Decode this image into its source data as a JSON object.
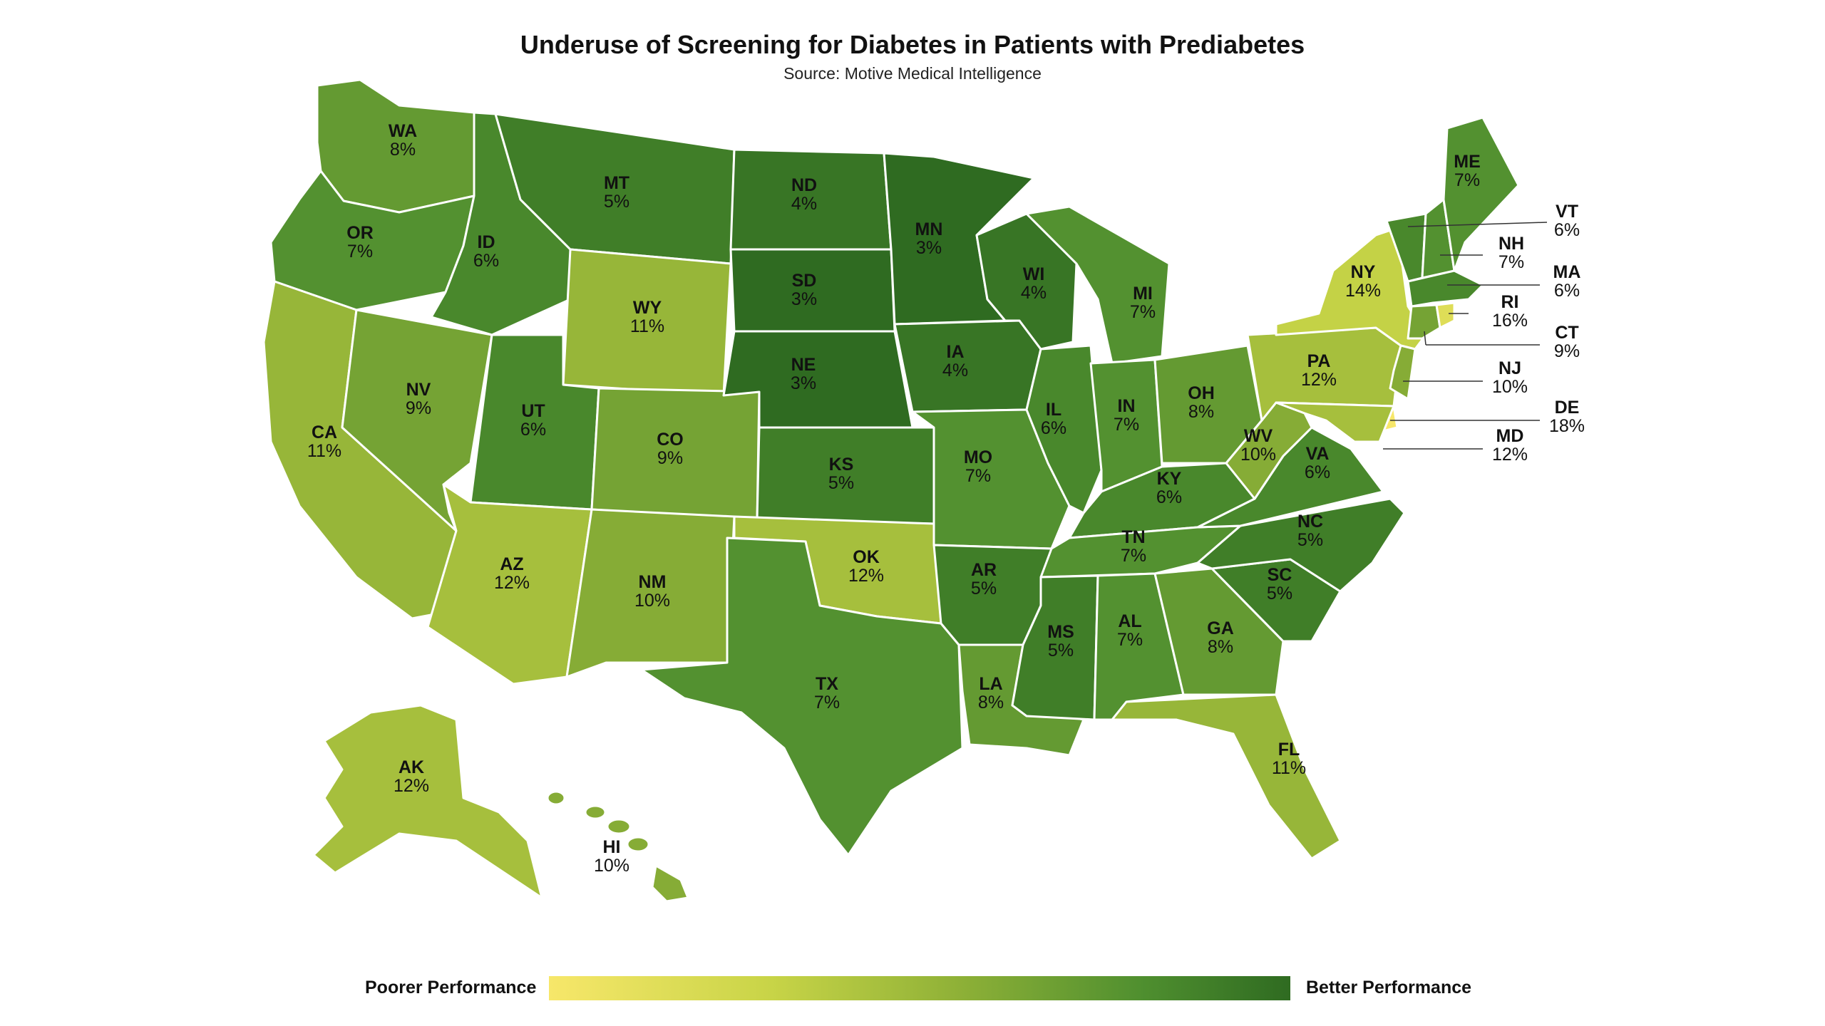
{
  "title": "Underuse of Screening for Diabetes in Patients with Prediabetes",
  "subtitle": "Source: Motive Medical Intelligence",
  "legend": {
    "low_label": "Poorer Performance",
    "high_label": "Better Performance",
    "colors": [
      "#f7e76a",
      "#c8d447",
      "#8fb137",
      "#4f8f2f",
      "#2f6b21"
    ]
  },
  "states": [
    {
      "abbr": "WA",
      "value": "8%"
    },
    {
      "abbr": "OR",
      "value": "7%"
    },
    {
      "abbr": "CA",
      "value": "11%"
    },
    {
      "abbr": "NV",
      "value": "9%"
    },
    {
      "abbr": "ID",
      "value": "6%"
    },
    {
      "abbr": "MT",
      "value": "5%"
    },
    {
      "abbr": "WY",
      "value": "11%"
    },
    {
      "abbr": "UT",
      "value": "6%"
    },
    {
      "abbr": "AZ",
      "value": "12%"
    },
    {
      "abbr": "CO",
      "value": "9%"
    },
    {
      "abbr": "NM",
      "value": "10%"
    },
    {
      "abbr": "ND",
      "value": "4%"
    },
    {
      "abbr": "SD",
      "value": "3%"
    },
    {
      "abbr": "NE",
      "value": "3%"
    },
    {
      "abbr": "KS",
      "value": "5%"
    },
    {
      "abbr": "OK",
      "value": "12%"
    },
    {
      "abbr": "TX",
      "value": "7%"
    },
    {
      "abbr": "MN",
      "value": "3%"
    },
    {
      "abbr": "IA",
      "value": "4%"
    },
    {
      "abbr": "MO",
      "value": "7%"
    },
    {
      "abbr": "AR",
      "value": "5%"
    },
    {
      "abbr": "LA",
      "value": "8%"
    },
    {
      "abbr": "WI",
      "value": "4%"
    },
    {
      "abbr": "IL",
      "value": "6%"
    },
    {
      "abbr": "MI",
      "value": "7%"
    },
    {
      "abbr": "IN",
      "value": "7%"
    },
    {
      "abbr": "OH",
      "value": "8%"
    },
    {
      "abbr": "KY",
      "value": "6%"
    },
    {
      "abbr": "TN",
      "value": "7%"
    },
    {
      "abbr": "MS",
      "value": "5%"
    },
    {
      "abbr": "AL",
      "value": "7%"
    },
    {
      "abbr": "GA",
      "value": "8%"
    },
    {
      "abbr": "FL",
      "value": "11%"
    },
    {
      "abbr": "SC",
      "value": "5%"
    },
    {
      "abbr": "NC",
      "value": "5%"
    },
    {
      "abbr": "VA",
      "value": "6%"
    },
    {
      "abbr": "WV",
      "value": "10%"
    },
    {
      "abbr": "PA",
      "value": "12%"
    },
    {
      "abbr": "NY",
      "value": "14%"
    },
    {
      "abbr": "ME",
      "value": "7%"
    },
    {
      "abbr": "AK",
      "value": "12%"
    },
    {
      "abbr": "HI",
      "value": "10%"
    },
    {
      "abbr": "VT",
      "value": "6%"
    },
    {
      "abbr": "NH",
      "value": "7%"
    },
    {
      "abbr": "MA",
      "value": "6%"
    },
    {
      "abbr": "RI",
      "value": "16%"
    },
    {
      "abbr": "CT",
      "value": "9%"
    },
    {
      "abbr": "NJ",
      "value": "10%"
    },
    {
      "abbr": "DE",
      "value": "18%"
    },
    {
      "abbr": "MD",
      "value": "12%"
    }
  ]
}
